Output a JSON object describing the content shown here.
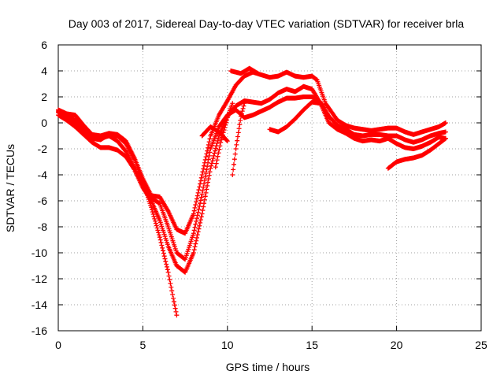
{
  "chart_data": {
    "type": "scatter",
    "title": "Day 003 of 2017, Sidereal Day-to-day VTEC variation (SDTVAR) for receiver brla",
    "xlabel": "GPS time / hours",
    "ylabel": "SDTVAR / TECUs",
    "xlim": [
      0,
      25
    ],
    "ylim": [
      -16,
      6
    ],
    "xticks": [
      "0",
      "5",
      "10",
      "15",
      "20",
      "25"
    ],
    "yticks": [
      "6",
      "4",
      "2",
      "0",
      "-2",
      "-4",
      "-6",
      "-8",
      "-10",
      "-12",
      "-14",
      "-16"
    ],
    "grid": true,
    "marker": "+",
    "color": "#ff0000",
    "series": [
      {
        "points": [
          [
            0.0,
            0.9
          ],
          [
            0.5,
            0.6
          ],
          [
            1.0,
            0.2
          ],
          [
            1.5,
            -0.4
          ],
          [
            2.0,
            -1.2
          ],
          [
            2.5,
            -1.3
          ],
          [
            3.0,
            -0.9
          ],
          [
            3.5,
            -1.0
          ],
          [
            4.0,
            -1.6
          ],
          [
            4.5,
            -2.8
          ],
          [
            5.0,
            -4.5
          ],
          [
            5.5,
            -6.5
          ],
          [
            6.0,
            -8.8
          ],
          [
            6.5,
            -11.5
          ],
          [
            6.8,
            -13.5
          ],
          [
            7.0,
            -14.8
          ]
        ]
      },
      {
        "points": [
          [
            0.0,
            0.6
          ],
          [
            0.5,
            0.2
          ],
          [
            1.0,
            -0.3
          ],
          [
            1.5,
            -0.9
          ],
          [
            2.0,
            -1.5
          ],
          [
            2.5,
            -1.9
          ],
          [
            3.0,
            -1.9
          ],
          [
            3.5,
            -2.1
          ],
          [
            4.0,
            -2.6
          ],
          [
            4.5,
            -3.6
          ],
          [
            5.0,
            -5.0
          ],
          [
            5.5,
            -6.0
          ],
          [
            6.0,
            -7.5
          ],
          [
            6.5,
            -9.5
          ],
          [
            7.0,
            -11.0
          ],
          [
            7.5,
            -11.5
          ],
          [
            8.0,
            -10.0
          ],
          [
            8.5,
            -7.0
          ],
          [
            9.0,
            -3.5
          ],
          [
            9.5,
            -1.0
          ],
          [
            10.0,
            0.5
          ],
          [
            10.5,
            1.3
          ],
          [
            11.0,
            1.7
          ],
          [
            11.5,
            1.6
          ],
          [
            12.0,
            1.5
          ],
          [
            12.5,
            1.8
          ],
          [
            13.0,
            2.3
          ],
          [
            13.5,
            2.6
          ],
          [
            14.0,
            2.4
          ],
          [
            14.5,
            2.8
          ],
          [
            15.0,
            2.6
          ],
          [
            15.5,
            1.5
          ],
          [
            16.0,
            0.0
          ],
          [
            16.5,
            -0.5
          ],
          [
            17.0,
            -0.8
          ],
          [
            17.5,
            -1.2
          ],
          [
            18.0,
            -1.4
          ],
          [
            18.5,
            -1.3
          ],
          [
            19.0,
            -1.4
          ],
          [
            19.5,
            -1.2
          ],
          [
            20.0,
            -1.6
          ],
          [
            20.5,
            -1.9
          ],
          [
            21.0,
            -2.0
          ],
          [
            21.5,
            -1.8
          ],
          [
            22.0,
            -1.5
          ],
          [
            22.5,
            -1.1
          ],
          [
            22.9,
            -1.2
          ]
        ]
      },
      {
        "points": [
          [
            0.0,
            1.0
          ],
          [
            0.5,
            0.7
          ],
          [
            1.0,
            0.6
          ],
          [
            1.5,
            -0.2
          ],
          [
            2.0,
            -0.9
          ],
          [
            2.5,
            -1.0
          ],
          [
            3.0,
            -0.8
          ],
          [
            3.5,
            -0.9
          ],
          [
            4.0,
            -1.4
          ],
          [
            4.5,
            -2.7
          ],
          [
            5.0,
            -4.3
          ],
          [
            5.5,
            -5.6
          ],
          [
            6.0,
            -5.7
          ],
          [
            6.5,
            -6.8
          ],
          [
            7.0,
            -8.2
          ],
          [
            7.5,
            -8.5
          ],
          [
            8.0,
            -7.0
          ],
          [
            8.5,
            -4.0
          ],
          [
            9.0,
            -1.0
          ],
          [
            9.5,
            0.6
          ],
          [
            10.0,
            1.7
          ],
          [
            10.5,
            2.9
          ],
          [
            11.0,
            3.6
          ],
          [
            11.5,
            3.9
          ],
          [
            12.0,
            3.7
          ],
          [
            12.5,
            3.5
          ],
          [
            13.0,
            3.6
          ],
          [
            13.5,
            3.9
          ],
          [
            14.0,
            3.6
          ],
          [
            14.5,
            3.5
          ],
          [
            15.0,
            3.6
          ],
          [
            15.3,
            3.3
          ],
          [
            15.8,
            1.5
          ],
          [
            16.5,
            0.2
          ],
          [
            17.0,
            -0.2
          ],
          [
            17.5,
            -0.4
          ],
          [
            18.0,
            -0.5
          ],
          [
            18.5,
            -0.6
          ],
          [
            19.0,
            -0.5
          ],
          [
            19.5,
            -0.4
          ],
          [
            20.0,
            -0.4
          ],
          [
            20.5,
            -0.7
          ],
          [
            21.0,
            -0.9
          ],
          [
            21.5,
            -0.7
          ],
          [
            22.0,
            -0.5
          ],
          [
            22.5,
            -0.3
          ],
          [
            22.9,
            0.0
          ]
        ]
      },
      {
        "points": [
          [
            0.0,
            0.8
          ],
          [
            0.5,
            0.4
          ],
          [
            1.0,
            0.0
          ],
          [
            1.5,
            -0.6
          ],
          [
            2.0,
            -1.1
          ],
          [
            2.5,
            -1.2
          ],
          [
            3.0,
            -1.0
          ],
          [
            3.5,
            -1.4
          ],
          [
            4.0,
            -2.2
          ],
          [
            4.5,
            -3.5
          ],
          [
            5.0,
            -4.8
          ],
          [
            5.5,
            -5.8
          ],
          [
            6.0,
            -6.2
          ],
          [
            6.5,
            -8.0
          ],
          [
            7.0,
            -10.0
          ],
          [
            7.5,
            -10.5
          ],
          [
            8.0,
            -8.5
          ],
          [
            8.5,
            -5.5
          ],
          [
            9.0,
            -2.0
          ],
          [
            9.5,
            -0.3
          ],
          [
            10.0,
            0.6
          ],
          [
            10.5,
            1.0
          ],
          [
            11.0,
            0.4
          ],
          [
            11.5,
            0.6
          ],
          [
            12.0,
            0.9
          ],
          [
            12.5,
            1.2
          ],
          [
            13.0,
            1.6
          ],
          [
            13.5,
            1.9
          ],
          [
            14.0,
            1.9
          ],
          [
            14.5,
            2.0
          ],
          [
            15.0,
            2.0
          ],
          [
            15.5,
            1.6
          ],
          [
            16.0,
            0.5
          ],
          [
            16.5,
            -0.2
          ],
          [
            17.0,
            -0.5
          ],
          [
            17.5,
            -0.9
          ],
          [
            18.0,
            -1.0
          ],
          [
            18.5,
            -0.9
          ],
          [
            19.0,
            -0.9
          ],
          [
            19.5,
            -1.0
          ],
          [
            20.0,
            -1.0
          ],
          [
            20.5,
            -1.3
          ],
          [
            21.0,
            -1.5
          ],
          [
            21.5,
            -1.3
          ],
          [
            22.0,
            -1.0
          ],
          [
            22.5,
            -0.8
          ],
          [
            22.9,
            -0.7
          ]
        ]
      },
      {
        "points": [
          [
            8.5,
            -1.0
          ],
          [
            9.0,
            -0.3
          ],
          [
            9.5,
            -0.7
          ],
          [
            10.0,
            -1.4
          ]
        ]
      },
      {
        "points": [
          [
            9.3,
            -3.4
          ],
          [
            9.6,
            -1.5
          ],
          [
            10.0,
            0.4
          ],
          [
            10.3,
            1.5
          ]
        ]
      },
      {
        "points": [
          [
            10.3,
            -4.0
          ],
          [
            10.5,
            -2.0
          ],
          [
            10.8,
            0.5
          ],
          [
            11.0,
            1.5
          ]
        ]
      },
      {
        "points": [
          [
            10.2,
            4.0
          ],
          [
            10.8,
            3.8
          ],
          [
            11.3,
            4.2
          ],
          [
            11.8,
            3.8
          ]
        ]
      },
      {
        "points": [
          [
            12.5,
            -0.5
          ],
          [
            13.0,
            -0.7
          ],
          [
            13.5,
            -0.3
          ],
          [
            14.0,
            0.3
          ],
          [
            14.5,
            1.0
          ],
          [
            15.0,
            1.6
          ],
          [
            15.5,
            1.5
          ]
        ]
      },
      {
        "points": [
          [
            19.5,
            -3.5
          ],
          [
            20.0,
            -3.0
          ],
          [
            20.5,
            -2.8
          ],
          [
            21.0,
            -2.7
          ],
          [
            21.5,
            -2.5
          ],
          [
            22.0,
            -2.1
          ],
          [
            22.5,
            -1.6
          ],
          [
            22.9,
            -1.2
          ]
        ]
      }
    ]
  }
}
